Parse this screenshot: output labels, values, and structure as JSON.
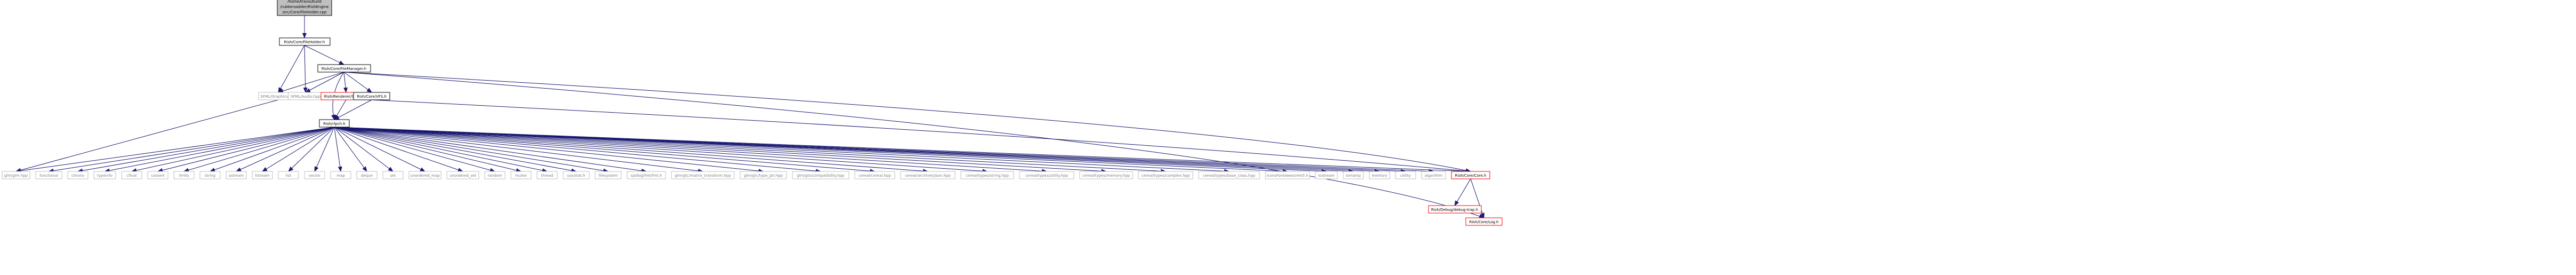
{
  "graph": {
    "root": [
      "/home/travis/build",
      "/rubbersadder/RishEngine",
      "/src/Core/FileHolder.cpp"
    ],
    "colors": {
      "edge": "#191970",
      "root_fill": "#bfbfbf",
      "node_border": "#000000",
      "external_border": "#bfbfbf",
      "external_text": "#7f7f7f",
      "missing_border": "#ff0000"
    },
    "level1": [
      "Rish/Core/FileHolder.h"
    ],
    "level2": [
      "Rish/Core/FileManager.h"
    ],
    "level3": [
      "SFML/Graphics.hpp",
      "SFML/Audio.hpp",
      "Rish/Renderer/Shader.h",
      "Rish/Core/VFS.h"
    ],
    "level4": [
      "Rish/rlpch.h"
    ],
    "row": [
      "glm/glm.hpp",
      "functional",
      "chrono",
      "typeinfo",
      "cfloat",
      "cassert",
      "limits",
      "string",
      "sstream",
      "fstream",
      "list",
      "vector",
      "map",
      "deque",
      "set",
      "unordered_map",
      "unordered_set",
      "random",
      "mutex",
      "thread",
      "sys/stat.h",
      "filesystem",
      "spdlog/fmt/fmt.h",
      "glm/gtc/matrix_transform.hpp",
      "glm/gtc/type_ptr.hpp",
      "glm/gtx/compatibility.hpp",
      "cereal/cereal.hpp",
      "cereal/archives/json.hpp",
      "cereal/types/string.hpp",
      "cereal/types/utility.hpp",
      "cereal/types/memory.hpp",
      "cereal/types/complex.hpp",
      "cereal/types/base_class.hpp",
      "IconsFontAwesome5.h",
      "iostream",
      "iomanip",
      "memory",
      "utility",
      "algorithm",
      "Rish/Core/Core.h"
    ],
    "bottom": [
      "Rish/Debug/debug-trap.h",
      "Rish/Core/Log.h"
    ]
  }
}
